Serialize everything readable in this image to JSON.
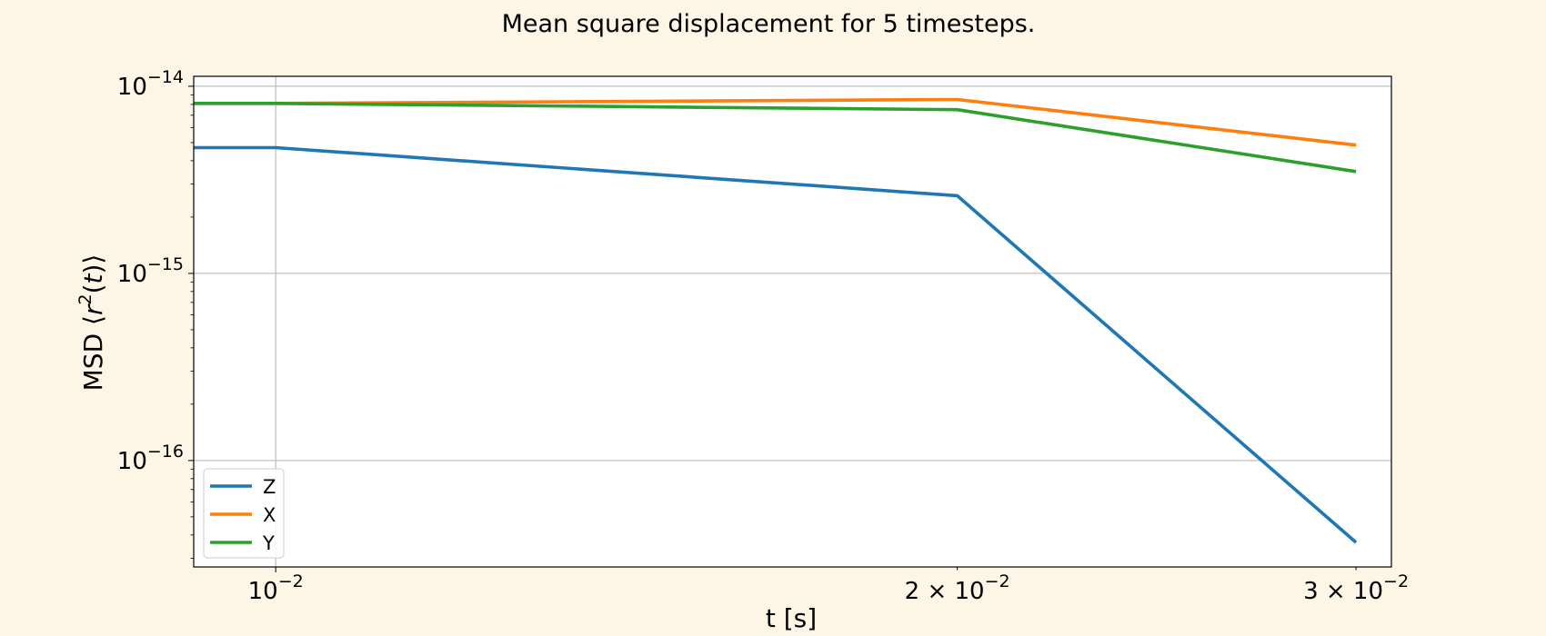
{
  "chart_data": {
    "type": "line",
    "title": "Mean square displacement for 5 timesteps.",
    "xlabel": "t [s]",
    "ylabel": "MSD ⟨r²(t)⟩",
    "xscale": "log",
    "yscale": "log",
    "xlim": [
      0.0092,
      0.0311
    ],
    "ylim": [
      2.7e-17,
      1.13e-14
    ],
    "grid": true,
    "legend_position": "lower-left",
    "x": [
      0.01,
      0.02,
      0.03
    ],
    "series": [
      {
        "name": "Z",
        "color": "#1f77b4",
        "values": [
          4.7e-15,
          2.6e-15,
          3.65e-17
        ]
      },
      {
        "name": "X",
        "color": "#ff7f0e",
        "values": [
          8.1e-15,
          8.5e-15,
          4.85e-15
        ]
      },
      {
        "name": "Y",
        "color": "#2ca02c",
        "values": [
          8.1e-15,
          7.5e-15,
          3.5e-15
        ]
      }
    ],
    "x_ticks": [
      {
        "value": 0.01,
        "base": "10",
        "exp": "−2"
      },
      {
        "value": 0.02,
        "base": "2 × 10",
        "exp": "−2"
      },
      {
        "value": 0.03,
        "base": "3 × 10",
        "exp": "−2"
      }
    ],
    "y_ticks": [
      {
        "value": 1e-14,
        "base": "10",
        "exp": "−14"
      },
      {
        "value": 1e-15,
        "base": "10",
        "exp": "−15"
      },
      {
        "value": 1e-16,
        "base": "10",
        "exp": "−16"
      }
    ]
  }
}
